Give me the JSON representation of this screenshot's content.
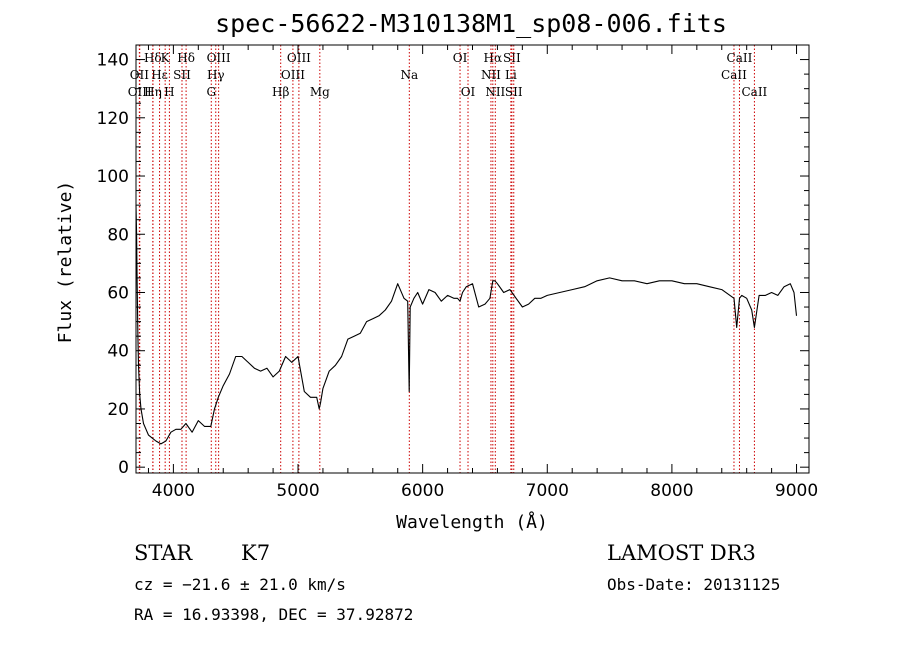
{
  "chart_data": {
    "type": "line",
    "title": "spec-56622-M310138M1_sp08-006.fits",
    "xlabel": "Wavelength (Å)",
    "ylabel": "Flux (relative)",
    "xlim": [
      3700,
      9100
    ],
    "ylim": [
      -2,
      145
    ],
    "xticks": [
      4000,
      5000,
      6000,
      7000,
      8000,
      9000
    ],
    "yticks": [
      0,
      20,
      40,
      60,
      80,
      100,
      120,
      140
    ],
    "grid": false,
    "series": [
      {
        "name": "spectrum",
        "color": "#000000",
        "x": [
          3700,
          3705,
          3710,
          3715,
          3720,
          3730,
          3740,
          3760,
          3780,
          3800,
          3830,
          3860,
          3900,
          3940,
          3980,
          4020,
          4060,
          4100,
          4150,
          4200,
          4250,
          4300,
          4330,
          4360,
          4400,
          4450,
          4500,
          4550,
          4600,
          4650,
          4700,
          4750,
          4800,
          4850,
          4900,
          4950,
          5000,
          5050,
          5100,
          5150,
          5170,
          5180,
          5200,
          5250,
          5300,
          5350,
          5400,
          5450,
          5500,
          5550,
          5600,
          5650,
          5700,
          5750,
          5800,
          5850,
          5880,
          5892,
          5900,
          5930,
          5960,
          6000,
          6050,
          6100,
          6150,
          6200,
          6250,
          6280,
          6300,
          6320,
          6350,
          6400,
          6450,
          6500,
          6520,
          6540,
          6563,
          6580,
          6600,
          6650,
          6700,
          6750,
          6800,
          6850,
          6900,
          6950,
          7000,
          7100,
          7200,
          7300,
          7400,
          7500,
          7600,
          7700,
          7800,
          7900,
          8000,
          8100,
          8200,
          8300,
          8400,
          8498,
          8520,
          8542,
          8560,
          8600,
          8640,
          8662,
          8700,
          8750,
          8800,
          8850,
          8900,
          8950,
          8980,
          9000
        ],
        "y": [
          90,
          80,
          62,
          45,
          35,
          25,
          20,
          15,
          13,
          11,
          10,
          9,
          8,
          9,
          12,
          13,
          13,
          15,
          12,
          16,
          14,
          14,
          20,
          24,
          28,
          32,
          38,
          38,
          36,
          34,
          33,
          34,
          31,
          33,
          38,
          36,
          38,
          26,
          24,
          24,
          20,
          22,
          27,
          33,
          35,
          38,
          44,
          45,
          46,
          50,
          51,
          52,
          54,
          57,
          63,
          58,
          57,
          26,
          55,
          58,
          60,
          56,
          61,
          60,
          57,
          59,
          58,
          58,
          57,
          60,
          62,
          63,
          55,
          56,
          57,
          58,
          64,
          64,
          63,
          60,
          61,
          58,
          55,
          56,
          58,
          58,
          59,
          60,
          61,
          62,
          64,
          65,
          64,
          64,
          63,
          64,
          64,
          63,
          63,
          62,
          61,
          58,
          48,
          58,
          59,
          58,
          54,
          48,
          59,
          59,
          60,
          59,
          62,
          63,
          60,
          52
        ]
      }
    ],
    "spectral_lines": [
      {
        "name": "Hδ",
        "wavelength": 3835,
        "row": 1
      },
      {
        "name": "OII",
        "wavelength": 3727,
        "row": 2
      },
      {
        "name": "OIII",
        "wavelength": 3730,
        "row": 3
      },
      {
        "name": "Hε",
        "wavelength": 3889,
        "row": 2
      },
      {
        "name": "Hη",
        "wavelength": 3836,
        "row": 3
      },
      {
        "name": "K",
        "wavelength": 3934,
        "row": 1
      },
      {
        "name": "H",
        "wavelength": 3968,
        "row": 3
      },
      {
        "name": "Hδ",
        "wavelength": 4102,
        "row": 1
      },
      {
        "name": "SII",
        "wavelength": 4069,
        "row": 2
      },
      {
        "name": "OIII",
        "wavelength": 4363,
        "row": 1
      },
      {
        "name": "Hγ",
        "wavelength": 4340,
        "row": 2
      },
      {
        "name": "G",
        "wavelength": 4304,
        "row": 3
      },
      {
        "name": "OIII",
        "wavelength": 5007,
        "row": 1
      },
      {
        "name": "OIII",
        "wavelength": 4959,
        "row": 2
      },
      {
        "name": "Hβ",
        "wavelength": 4861,
        "row": 3
      },
      {
        "name": "Mg",
        "wavelength": 5175,
        "row": 3
      },
      {
        "name": "Na",
        "wavelength": 5893,
        "row": 2
      },
      {
        "name": "OI",
        "wavelength": 6300,
        "row": 1
      },
      {
        "name": "OI",
        "wavelength": 6364,
        "row": 3
      },
      {
        "name": "Hα",
        "wavelength": 6563,
        "row": 1
      },
      {
        "name": "NII",
        "wavelength": 6548,
        "row": 2
      },
      {
        "name": "NII",
        "wavelength": 6583,
        "row": 3
      },
      {
        "name": "SII",
        "wavelength": 6716,
        "row": 1
      },
      {
        "name": "Li",
        "wavelength": 6708,
        "row": 2
      },
      {
        "name": "SII",
        "wavelength": 6731,
        "row": 3
      },
      {
        "name": "CaII",
        "wavelength": 8542,
        "row": 1
      },
      {
        "name": "CaII",
        "wavelength": 8498,
        "row": 2
      },
      {
        "name": "CaII",
        "wavelength": 8662,
        "row": 3
      }
    ]
  },
  "info": {
    "object_class": "STAR",
    "subclass": "K7",
    "survey": "LAMOST DR3",
    "redshift": "cz = −21.6 ± 21.0 km/s",
    "obs_date": "Obs-Date: 20131125",
    "coords": "RA =  16.93398, DEC =  37.92872"
  },
  "colors": {
    "line_marker": "#cc0000",
    "spectrum": "#000000"
  }
}
